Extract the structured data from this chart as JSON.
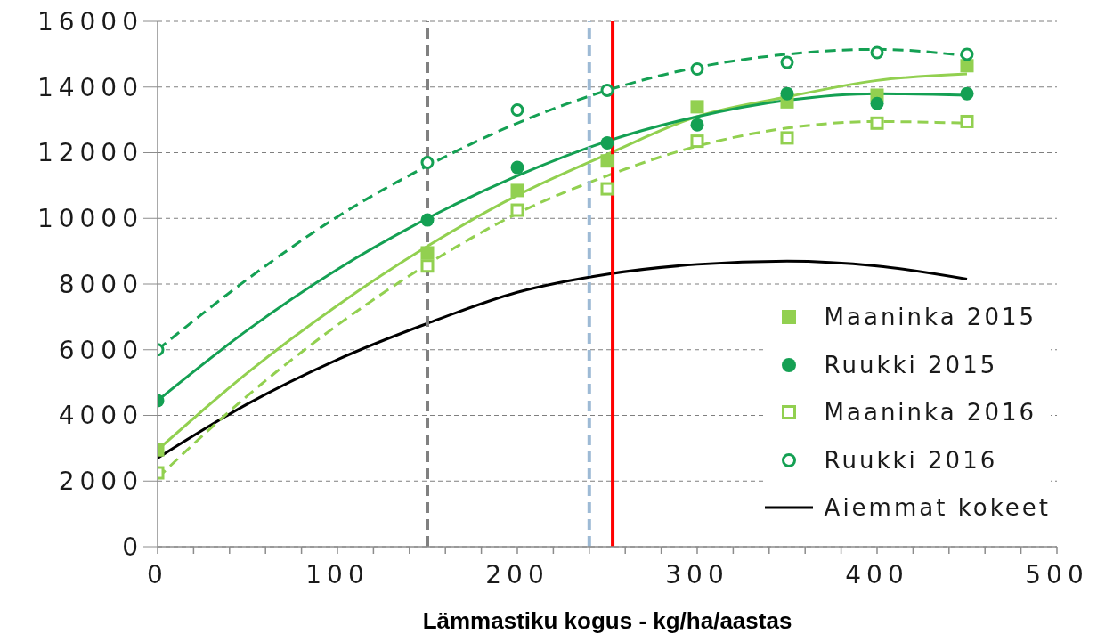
{
  "chart_data": {
    "type": "scatter",
    "xlabel": "Lämmastiku kogus - kg/ha/aastas",
    "xlim": [
      0,
      500
    ],
    "xticks": [
      0,
      {
        "value": 20,
        "label": null
      },
      {
        "value": 40,
        "label": null
      },
      {
        "value": 60,
        "label": null
      },
      {
        "value": 80,
        "label": null
      },
      100,
      {
        "value": 120,
        "label": null
      },
      {
        "value": 140,
        "label": null
      },
      {
        "value": 160,
        "label": null
      },
      {
        "value": 180,
        "label": null
      },
      200,
      {
        "value": 220,
        "label": null
      },
      {
        "value": 240,
        "label": null
      },
      {
        "value": 260,
        "label": null
      },
      {
        "value": 280,
        "label": null
      },
      300,
      {
        "value": 320,
        "label": null
      },
      {
        "value": 340,
        "label": null
      },
      {
        "value": 360,
        "label": null
      },
      {
        "value": 380,
        "label": null
      },
      400,
      {
        "value": 420,
        "label": null
      },
      {
        "value": 440,
        "label": null
      },
      {
        "value": 460,
        "label": null
      },
      {
        "value": 480,
        "label": null
      },
      500
    ],
    "ylim": [
      0,
      16000
    ],
    "yticks": [
      0,
      2000,
      4000,
      6000,
      8000,
      10000,
      12000,
      14000,
      16000
    ],
    "grid": "y",
    "legend": "bottom right",
    "x": [
      0,
      150,
      200,
      250,
      300,
      350,
      400,
      450
    ],
    "series": [
      {
        "name": "Maaninka 2015",
        "marker": "square",
        "color": "#92d050",
        "values": [
          2950,
          8950,
          10850,
          11750,
          13400,
          13550,
          13750,
          14650
        ]
      },
      {
        "name": "Ruukki 2015",
        "marker": "circle",
        "color": "#14a053",
        "values": [
          4450,
          9950,
          11550,
          12300,
          12850,
          13800,
          13500,
          13800
        ]
      },
      {
        "name": "Maaninka 2016",
        "marker": "square-open",
        "color": "#92d050",
        "values": [
          2250,
          8550,
          10250,
          10900,
          12350,
          12450,
          12900,
          12950
        ]
      },
      {
        "name": "Ruukki 2016",
        "marker": "circle-open",
        "color": "#14a053",
        "values": [
          6000,
          11700,
          13300,
          13900,
          14550,
          14750,
          15050,
          15000
        ]
      },
      {
        "name": "Aiemmat kokeet",
        "type": "line",
        "marker": "none",
        "line_style": "solid",
        "color": "#000000",
        "x": [
          0,
          50,
          100,
          150,
          200,
          250,
          300,
          350,
          400,
          450
        ],
        "values": [
          2700,
          4350,
          5700,
          6800,
          7750,
          8300,
          8600,
          8700,
          8550,
          8150
        ]
      },
      {
        "type": "line",
        "marker": "none",
        "line_style": "solid",
        "color": "#92d050",
        "x": [
          0,
          50,
          100,
          150,
          200,
          250,
          300,
          350,
          400,
          450
        ],
        "values": [
          2950,
          5300,
          7350,
          9150,
          10700,
          11950,
          13100,
          13700,
          14200,
          14400
        ]
      },
      {
        "type": "line",
        "marker": "none",
        "line_style": "solid",
        "color": "#14a053",
        "x": [
          0,
          50,
          100,
          150,
          200,
          250,
          300,
          350,
          400,
          450
        ],
        "values": [
          4450,
          6600,
          8450,
          10000,
          11300,
          12350,
          13100,
          13600,
          13800,
          13750
        ]
      },
      {
        "type": "line",
        "marker": "none",
        "line_style": "dashed",
        "color": "#92d050",
        "x": [
          0,
          50,
          100,
          150,
          200,
          250,
          300,
          350,
          400,
          450
        ],
        "values": [
          2100,
          4600,
          6750,
          8600,
          10150,
          11300,
          12200,
          12750,
          12950,
          12900
        ]
      },
      {
        "type": "line",
        "marker": "none",
        "line_style": "dashed",
        "color": "#14a053",
        "x": [
          0,
          50,
          100,
          150,
          200,
          250,
          300,
          350,
          400,
          450
        ],
        "values": [
          6000,
          8150,
          10050,
          11600,
          12900,
          13900,
          14600,
          15000,
          15150,
          14950
        ]
      }
    ],
    "ref_lines": [
      {
        "axis": "x",
        "value": 150,
        "color": "#808080",
        "line_style": "dashed"
      },
      {
        "axis": "x",
        "value": 240,
        "color": "#9dbad5",
        "line_style": "dashed"
      },
      {
        "axis": "x",
        "value": 253,
        "color": "#ff0000",
        "line_style": "solid"
      }
    ]
  }
}
